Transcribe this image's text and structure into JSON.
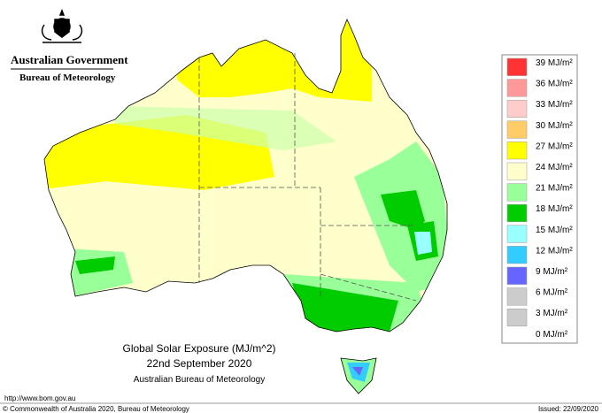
{
  "header": {
    "government": "Australian Government",
    "agency": "Bureau of Meteorology"
  },
  "legend": {
    "labels": [
      "39 MJ/m²",
      "36 MJ/m²",
      "33 MJ/m²",
      "30 MJ/m²",
      "27 MJ/m²",
      "24 MJ/m²",
      "21 MJ/m²",
      "18 MJ/m²",
      "15 MJ/m²",
      "12 MJ/m²",
      "9 MJ/m²",
      "6 MJ/m²",
      "3 MJ/m²",
      "0 MJ/m²"
    ],
    "colors": [
      "#ff3333",
      "#ff9999",
      "#ffcccc",
      "#ffcc66",
      "#ffff00",
      "#ffffcc",
      "#99ff99",
      "#00cc00",
      "#99ffff",
      "#33ccff",
      "#6666ff",
      "#cccccc",
      "#cccccc"
    ]
  },
  "title": {
    "line1": "Global Solar Exposure (MJ/m^2)",
    "line2": "22nd September 2020",
    "line3": "Australian Bureau of Meteorology"
  },
  "footer": {
    "url": "http://www.bom.gov.au",
    "copyright": "© Commonwealth of Australia 2020, Bureau of Meteorology",
    "issued": "Issued: 22/09/2020"
  }
}
